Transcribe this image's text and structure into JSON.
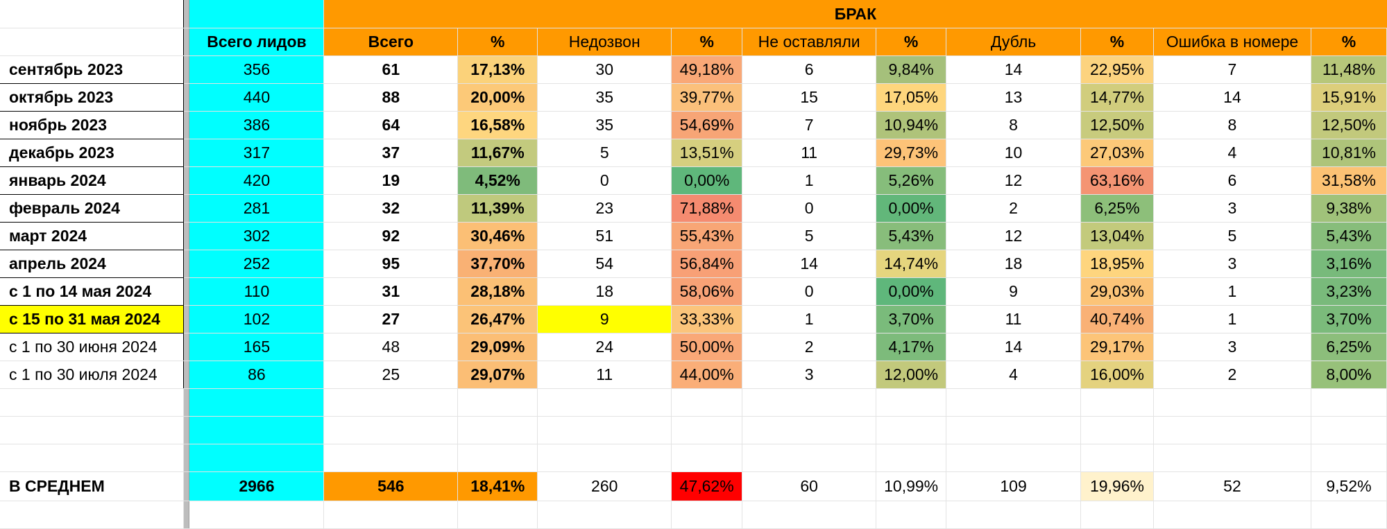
{
  "header": {
    "brak": "БРАК",
    "columns": [
      "Всего лидов",
      "Всего",
      "%",
      "Недозвон",
      "%",
      "Не оставляли",
      "%",
      "Дубль",
      "%",
      "Ошибка в номере",
      "%"
    ]
  },
  "rows": [
    {
      "label": "сентябрь 2023",
      "bold_label": true,
      "highlight_label": false,
      "bold_all": true,
      "cells": [
        "356",
        "61",
        "17,13%",
        "30",
        "49,18%",
        "6",
        "9,84%",
        "14",
        "22,95%",
        "7",
        "11,48%"
      ],
      "colors": [
        "#00ffff",
        "",
        "#fbd27a",
        "",
        "#f9a877",
        "",
        "#a5c07b",
        "",
        "#fcd37f",
        "",
        "#b7c77a"
      ]
    },
    {
      "label": "октябрь 2023",
      "bold_label": true,
      "highlight_label": false,
      "bold_all": true,
      "cells": [
        "440",
        "88",
        "20,00%",
        "35",
        "39,77%",
        "15",
        "17,05%",
        "13",
        "14,77%",
        "14",
        "15,91%"
      ],
      "colors": [
        "#00ffff",
        "",
        "#fcc978",
        "",
        "#fbc07b",
        "",
        "#fed67d",
        "",
        "#d1cd7d",
        "",
        "#dcce7b"
      ]
    },
    {
      "label": "ноябрь 2023",
      "bold_label": true,
      "highlight_label": false,
      "bold_all": true,
      "cells": [
        "386",
        "64",
        "16,58%",
        "35",
        "54,69%",
        "7",
        "10,94%",
        "8",
        "12,50%",
        "8",
        "12,50%"
      ],
      "colors": [
        "#00ffff",
        "",
        "#fed67f",
        "",
        "#f7a576",
        "",
        "#afc37a",
        "",
        "#c8cb7d",
        "",
        "#c2c97c"
      ]
    },
    {
      "label": "декабрь 2023",
      "bold_label": true,
      "highlight_label": false,
      "bold_all": true,
      "cells": [
        "317",
        "37",
        "11,67%",
        "5",
        "13,51%",
        "11",
        "29,73%",
        "10",
        "27,03%",
        "4",
        "10,81%"
      ],
      "colors": [
        "#00ffff",
        "",
        "#c3ca7e",
        "",
        "#d6cf7f",
        "",
        "#fdc378",
        "",
        "#fcc979",
        "",
        "#aec47a"
      ]
    },
    {
      "label": "январь 2024",
      "bold_label": true,
      "highlight_label": false,
      "bold_all": true,
      "cells": [
        "420",
        "19",
        "4,52%",
        "0",
        "0,00%",
        "1",
        "5,26%",
        "12",
        "63,16%",
        "6",
        "31,58%"
      ],
      "colors": [
        "#00ffff",
        "",
        "#7fbb7b",
        "",
        "#5fb77b",
        "",
        "#86bd7b",
        "",
        "#f49473",
        "",
        "#fcc274"
      ]
    },
    {
      "label": "февраль 2024",
      "bold_label": true,
      "highlight_label": false,
      "bold_all": true,
      "cells": [
        "281",
        "32",
        "11,39%",
        "23",
        "71,88%",
        "0",
        "0,00%",
        "2",
        "6,25%",
        "3",
        "9,38%"
      ],
      "colors": [
        "#00ffff",
        "",
        "#bfc97d",
        "",
        "#f58b70",
        "",
        "#62b77a",
        "",
        "#8dbf7a",
        "",
        "#a0c27a"
      ]
    },
    {
      "label": "март 2024",
      "bold_label": true,
      "highlight_label": false,
      "bold_all": true,
      "cells": [
        "302",
        "92",
        "30,46%",
        "51",
        "55,43%",
        "5",
        "5,43%",
        "12",
        "13,04%",
        "5",
        "5,43%"
      ],
      "colors": [
        "#00ffff",
        "",
        "#fbbf75",
        "",
        "#f8a676",
        "",
        "#88bd7b",
        "",
        "#c3ca7c",
        "",
        "#87bd7b"
      ]
    },
    {
      "label": "апрель 2024",
      "bold_label": true,
      "highlight_label": false,
      "bold_all": true,
      "cells": [
        "252",
        "95",
        "37,70%",
        "54",
        "56,84%",
        "14",
        "14,74%",
        "18",
        "18,95%",
        "3",
        "3,16%"
      ],
      "colors": [
        "#00ffff",
        "",
        "#f9b174",
        "",
        "#f8a076",
        "",
        "#e5d57e",
        "",
        "#fed57e",
        "",
        "#78ba7b"
      ]
    },
    {
      "label": "с 1 по 14 мая 2024",
      "bold_label": true,
      "highlight_label": false,
      "bold_all": true,
      "cells": [
        "110",
        "31",
        "28,18%",
        "18",
        "58,06%",
        "0",
        "0,00%",
        "9",
        "29,03%",
        "1",
        "3,23%"
      ],
      "colors": [
        "#00ffff",
        "",
        "#fbc075",
        "",
        "#f8a276",
        "",
        "#5fb77b",
        "",
        "#fcc478",
        "",
        "#79ba7b"
      ]
    },
    {
      "label": "с 15 по 31 мая 2024",
      "bold_label": true,
      "highlight_label": true,
      "bold_all": true,
      "cells": [
        "102",
        "27",
        "26,47%",
        "9",
        "33,33%",
        "1",
        "3,70%",
        "11",
        "40,74%",
        "1",
        "3,70%"
      ],
      "colors": [
        "#00ffff",
        "",
        "#fbc378",
        "",
        "#fbc47b",
        "",
        "#7abb7b",
        "",
        "#f9b176",
        "",
        "#7bbb7b"
      ],
      "highlight_cell": 3
    },
    {
      "label": "с 1 по 30 июня 2024",
      "bold_label": false,
      "highlight_label": false,
      "bold_all": false,
      "cells": [
        "165",
        "48",
        "29,09%",
        "24",
        "50,00%",
        "2",
        "4,17%",
        "14",
        "29,17%",
        "3",
        "6,25%"
      ],
      "colors": [
        "#00ffff",
        "",
        "#fbbe75",
        "",
        "#f9a877",
        "",
        "#7dbb7b",
        "",
        "#fcc478",
        "",
        "#8cbe7b"
      ]
    },
    {
      "label": "с 1 по 30 июля 2024",
      "bold_label": false,
      "highlight_label": false,
      "bold_all": false,
      "cells": [
        "86",
        "25",
        "29,07%",
        "11",
        "44,00%",
        "3",
        "12,00%",
        "4",
        "16,00%",
        "2",
        "8,00%"
      ],
      "colors": [
        "#00ffff",
        "",
        "#fbbe75",
        "",
        "#faae78",
        "",
        "#c2c97c",
        "",
        "#e4d27f",
        "",
        "#97c17a"
      ]
    }
  ],
  "average": {
    "label": "В СРЕДНЕМ",
    "cells": [
      "2966",
      "546",
      "18,41%",
      "260",
      "47,62%",
      "60",
      "10,99%",
      "109",
      "19,96%",
      "52",
      "9,52%"
    ],
    "colors": [
      "#00ffff",
      "#ff9900",
      "#ff9900",
      "",
      "#ff0000",
      "",
      "",
      "",
      "#fff2cc",
      "",
      ""
    ],
    "bold": [
      true,
      true,
      true,
      false,
      false,
      false,
      false,
      false,
      false,
      false,
      false
    ]
  }
}
